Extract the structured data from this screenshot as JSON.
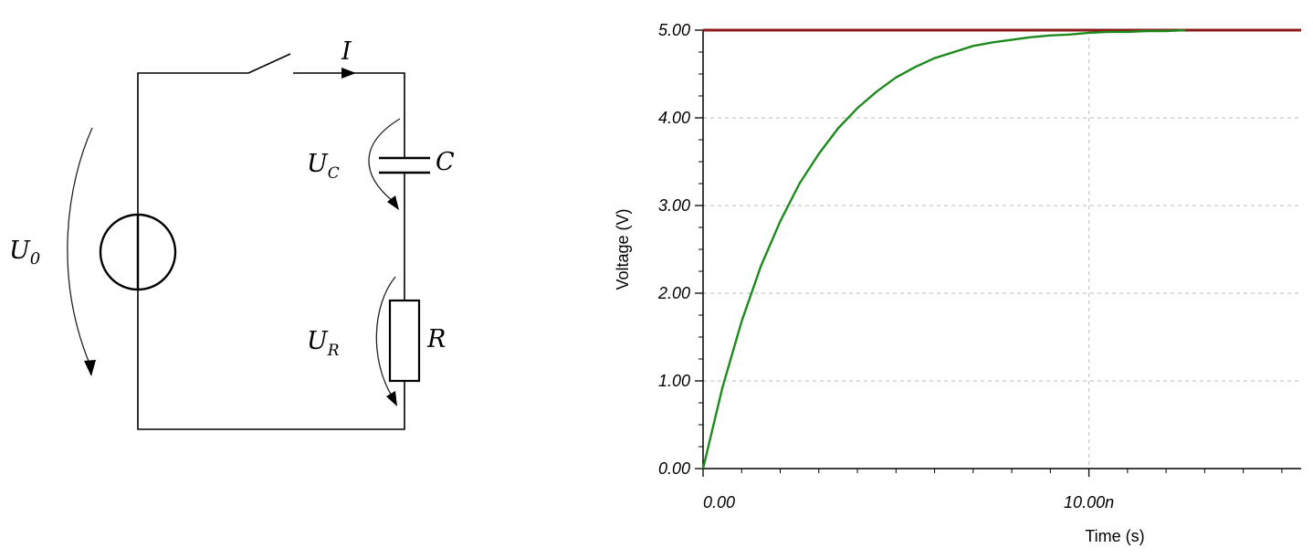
{
  "circuit": {
    "source_label": "U",
    "source_sub": "0",
    "current_label": "I",
    "cap_voltage_label": "U",
    "cap_voltage_sub": "C",
    "cap_label": "C",
    "res_voltage_label": "U",
    "res_voltage_sub": "R",
    "res_label": "R"
  },
  "chart_data": {
    "type": "line",
    "title": "",
    "xlabel": "Time (s)",
    "ylabel": "Voltage (V)",
    "xlim": [
      0,
      1.55e-08
    ],
    "ylim": [
      0,
      5
    ],
    "grid": true,
    "y_ticks": [
      {
        "value": 0,
        "label": "0.00"
      },
      {
        "value": 1,
        "label": "1.00"
      },
      {
        "value": 2,
        "label": "2.00"
      },
      {
        "value": 3,
        "label": "3.00"
      },
      {
        "value": 4,
        "label": "4.00"
      },
      {
        "value": 5,
        "label": "5.00"
      }
    ],
    "x_ticks": [
      {
        "value": 0,
        "label": "0.00"
      },
      {
        "value": 1e-08,
        "label": "10.00n"
      }
    ],
    "series": [
      {
        "color": "#8b1a1a",
        "x": [
          0,
          1.55e-08
        ],
        "y": [
          5,
          5
        ]
      },
      {
        "color": "#1e8a1e",
        "x": [
          0,
          5e-10,
          1e-09,
          1.5e-09,
          2e-09,
          2.5e-09,
          3e-09,
          3.5e-09,
          4e-09,
          4.5e-09,
          5e-09,
          5.5e-09,
          6e-09,
          6.5e-09,
          7e-09,
          7.5e-09,
          8e-09,
          8.5e-09,
          9e-09,
          9.5e-09,
          1e-08,
          1.05e-08,
          1.1e-08,
          1.15e-08,
          1.2e-08,
          1.25e-08
        ],
        "y": [
          0,
          0.92,
          1.68,
          2.31,
          2.82,
          3.25,
          3.59,
          3.88,
          4.11,
          4.3,
          4.46,
          4.58,
          4.68,
          4.75,
          4.82,
          4.86,
          4.89,
          4.92,
          4.94,
          4.95,
          4.97,
          4.98,
          4.98,
          4.99,
          4.99,
          5.0
        ]
      }
    ]
  }
}
